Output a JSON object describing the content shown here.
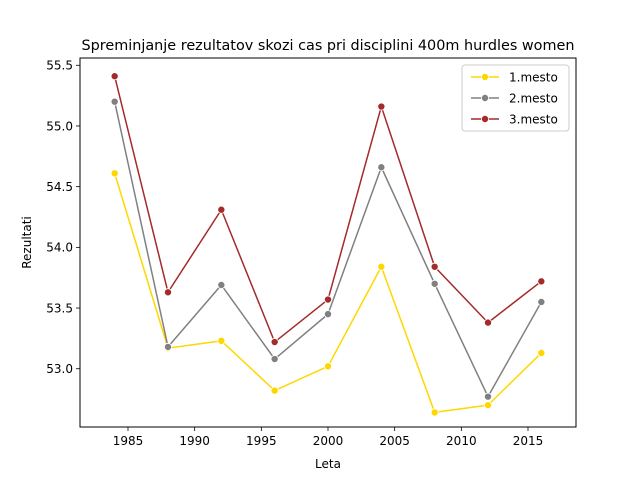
{
  "chart_data": {
    "type": "line",
    "title": "Spreminjanje rezultatov skozi cas pri disciplini 400m hurdles women",
    "xlabel": "Leta",
    "ylabel": "Rezultati",
    "x": [
      1984,
      1988,
      1992,
      1996,
      2000,
      2004,
      2008,
      2012,
      2016
    ],
    "xlim": [
      1981.4,
      2018.6
    ],
    "ylim": [
      52.52,
      55.56
    ],
    "xticks": [
      1985,
      1990,
      1995,
      2000,
      2005,
      2010,
      2015
    ],
    "yticks": [
      53.0,
      53.5,
      54.0,
      54.5,
      55.0,
      55.5
    ],
    "ytick_labels": [
      "53.0",
      "53.5",
      "54.0",
      "54.5",
      "55.0",
      "55.5"
    ],
    "grid": false,
    "legend_position": "top-right",
    "series": [
      {
        "name": "1.mesto",
        "color": "#FFD700",
        "values": [
          54.61,
          53.17,
          53.23,
          52.82,
          53.02,
          53.84,
          52.64,
          52.7,
          53.13
        ]
      },
      {
        "name": "2.mesto",
        "color": "#808080",
        "values": [
          55.2,
          53.18,
          53.69,
          53.08,
          53.45,
          54.66,
          53.7,
          52.77,
          53.55
        ]
      },
      {
        "name": "3.mesto",
        "color": "#A52A2A",
        "values": [
          55.41,
          53.63,
          54.31,
          53.22,
          53.57,
          55.16,
          53.84,
          53.38,
          53.72
        ]
      }
    ]
  }
}
